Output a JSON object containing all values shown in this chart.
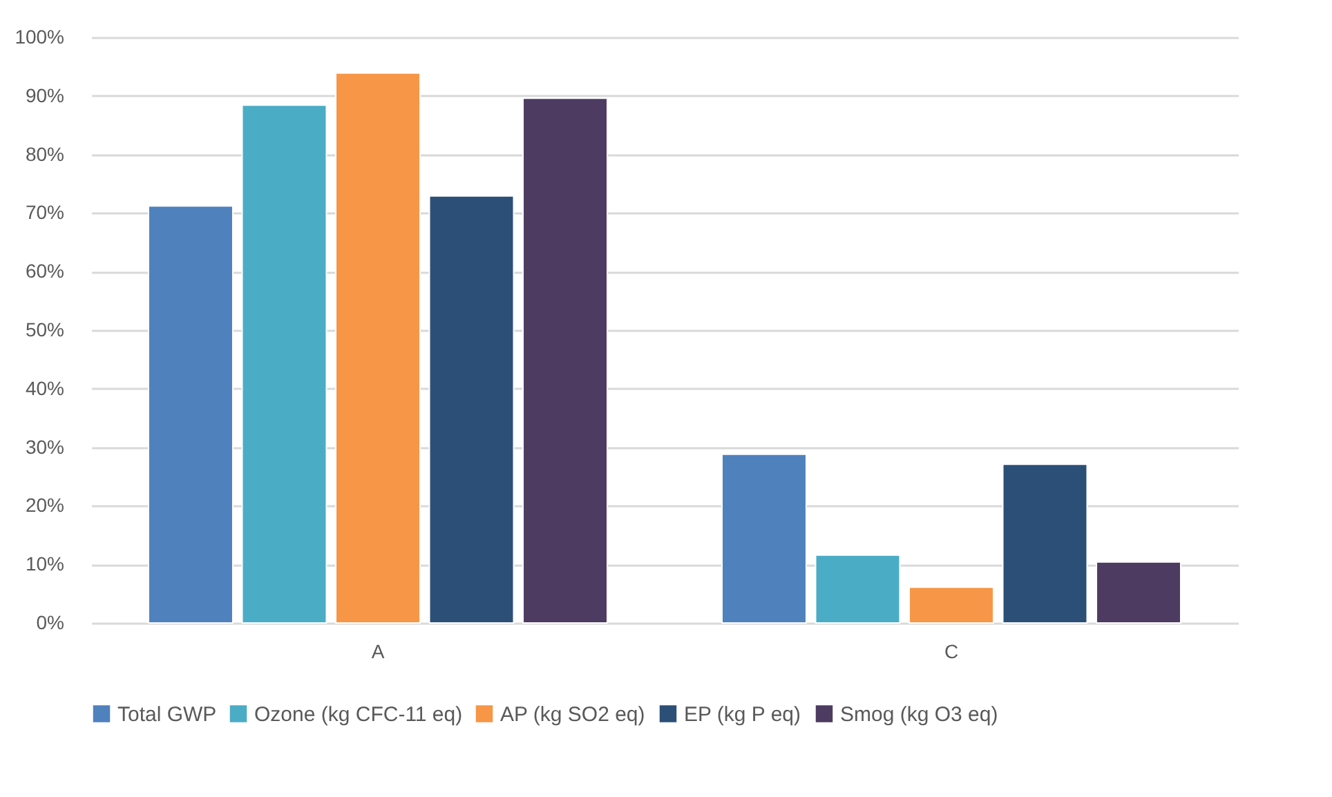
{
  "chart_data": {
    "type": "bar",
    "categories": [
      "A",
      "C"
    ],
    "series": [
      {
        "name": "Total GWP",
        "color": "#4f81bd",
        "values": [
          71.2,
          28.8
        ]
      },
      {
        "name": "Ozone (kg CFC-11 eq)",
        "color": "#4bacc6",
        "values": [
          88.4,
          11.6
        ]
      },
      {
        "name": "AP (kg SO2 eq)",
        "color": "#f79646",
        "values": [
          93.9,
          6.1
        ]
      },
      {
        "name": "EP (kg P eq)",
        "color": "#2c4f78",
        "values": [
          72.9,
          27.1
        ]
      },
      {
        "name": "Smog (kg O3 eq)",
        "color": "#4e3b61",
        "values": [
          89.6,
          10.4
        ]
      }
    ],
    "ylim": [
      0,
      100
    ],
    "yticks": [
      {
        "value": 0,
        "label": "0%"
      },
      {
        "value": 10,
        "label": "10%"
      },
      {
        "value": 20,
        "label": "20%"
      },
      {
        "value": 30,
        "label": "30%"
      },
      {
        "value": 40,
        "label": "40%"
      },
      {
        "value": 50,
        "label": "50%"
      },
      {
        "value": 60,
        "label": "60%"
      },
      {
        "value": 70,
        "label": "70%"
      },
      {
        "value": 80,
        "label": "80%"
      },
      {
        "value": 90,
        "label": "90%"
      },
      {
        "value": 100,
        "label": "100%"
      }
    ],
    "grid": "y",
    "legend": "bottom"
  }
}
